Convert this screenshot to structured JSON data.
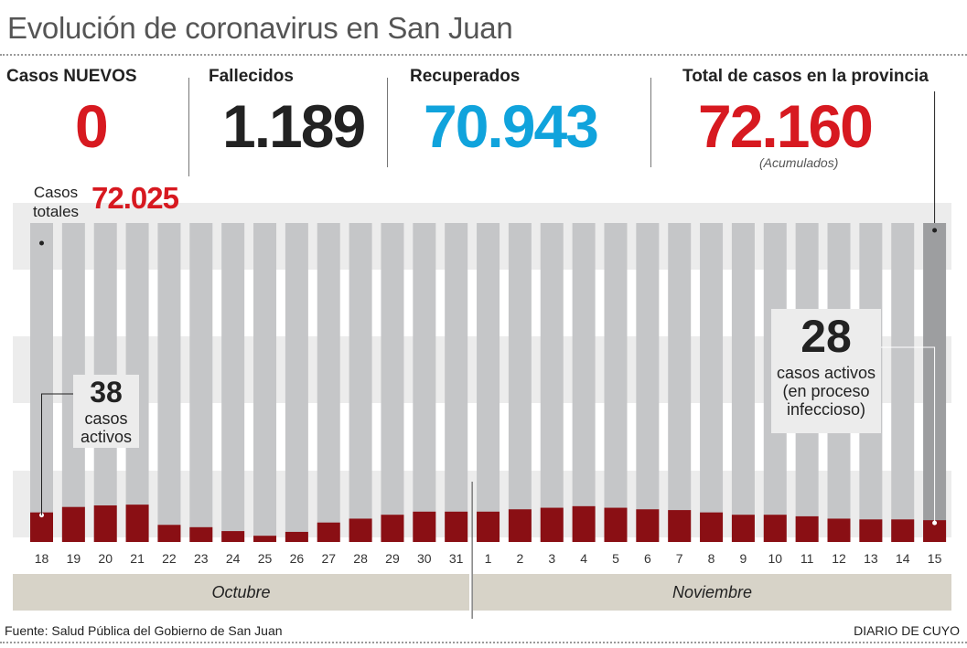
{
  "title": "Evolución de coronavirus en San Juan",
  "stats": {
    "nuevos": {
      "label": "Casos NUEVOS",
      "value": "0"
    },
    "fallecidos": {
      "label": "Fallecidos",
      "value": "1.189"
    },
    "recuperados": {
      "label": "Recuperados",
      "value": "70.943"
    },
    "total": {
      "label": "Total de casos en la provincia",
      "value": "72.160",
      "note": "(Acumulados)"
    }
  },
  "totals_label": {
    "line1": "Casos",
    "line2": "totales",
    "value": "72.025"
  },
  "callout_first": {
    "value": "38",
    "line1": "casos",
    "line2": "activos"
  },
  "callout_last": {
    "value": "28",
    "line1": "casos activos",
    "line2": "(en proceso",
    "line3": "infeccioso)"
  },
  "months": {
    "october": "Octubre",
    "november": "Noviembre"
  },
  "footer": {
    "source": "Fuente: Salud Pública del Gobierno de San Juan",
    "brand": "DIARIO DE CUYO"
  },
  "colors": {
    "red": "#d71920",
    "black": "#222222",
    "blue": "#10a3dc",
    "active_bar": "#8a0f14",
    "total_bar": "#c5c6c8",
    "last_bar": "#9d9ea0"
  },
  "chart_data": {
    "type": "bar",
    "categories": [
      "18",
      "19",
      "20",
      "21",
      "22",
      "23",
      "24",
      "25",
      "26",
      "27",
      "28",
      "29",
      "30",
      "31",
      "1",
      "2",
      "3",
      "4",
      "5",
      "6",
      "7",
      "8",
      "9",
      "10",
      "11",
      "12",
      "13",
      "14",
      "15"
    ],
    "series": [
      {
        "name": "Casos totales",
        "values": [
          72025,
          72035,
          72045,
          72055,
          72060,
          72065,
          72070,
          72075,
          72080,
          72085,
          72090,
          72095,
          72100,
          72105,
          72110,
          72115,
          72120,
          72125,
          72130,
          72135,
          72140,
          72143,
          72146,
          72149,
          72152,
          72155,
          72157,
          72160,
          72160
        ]
      },
      {
        "name": "casos activos",
        "values": [
          38,
          45,
          47,
          48,
          22,
          19,
          14,
          8,
          13,
          25,
          30,
          35,
          39,
          39,
          39,
          42,
          44,
          46,
          44,
          42,
          41,
          38,
          35,
          35,
          33,
          30,
          29,
          29,
          28
        ]
      }
    ],
    "ylim_active": [
      0,
      410
    ]
  }
}
